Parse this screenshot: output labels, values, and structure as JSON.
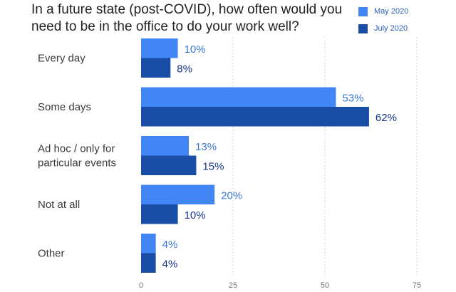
{
  "chart_data": {
    "type": "bar",
    "orientation": "horizontal",
    "title": "In a future state (post-COVID), how often would you need to be in the office to do your work well?",
    "categories": [
      "Every day",
      "Some days",
      "Ad hoc / only for particular events",
      "Not at all",
      "Other"
    ],
    "category_lines": [
      [
        "Every day"
      ],
      [
        "Some days"
      ],
      [
        "Ad hoc / only for",
        "particular events"
      ],
      [
        "Not at all"
      ],
      [
        "Other"
      ]
    ],
    "series": [
      {
        "name": "May 2020",
        "values": [
          10,
          53,
          13,
          20,
          4
        ],
        "color": "#4285F4",
        "label_color": "#3C78D8"
      },
      {
        "name": "July 2020",
        "values": [
          8,
          62,
          15,
          10,
          4
        ],
        "color": "#1A4DA5",
        "label_color": "#17358A"
      }
    ],
    "value_suffix": "%",
    "xlim": [
      0,
      75
    ],
    "xticks": [
      0,
      25,
      50,
      75
    ],
    "grid": true,
    "legend_position": "top-right",
    "xlabel": "",
    "ylabel": ""
  }
}
